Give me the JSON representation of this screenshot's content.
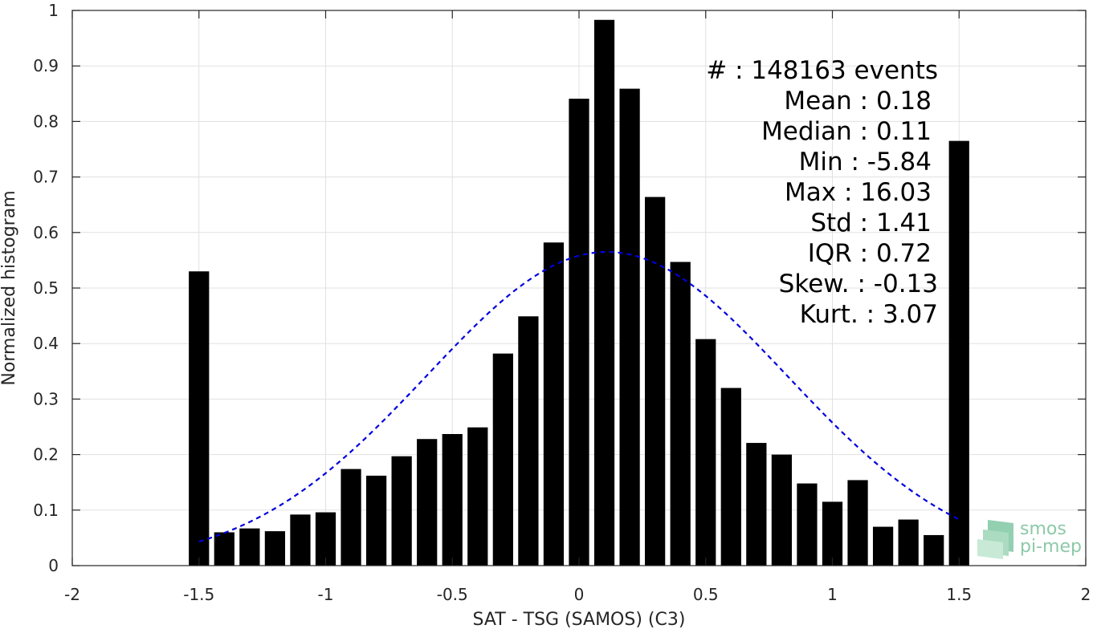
{
  "chart_data": {
    "type": "bar",
    "xlabel": "SAT - TSG (SAMOS) (C3)",
    "ylabel": "Normalized histogram",
    "xlim": [
      -2,
      2
    ],
    "ylim": [
      0,
      1
    ],
    "xticks": [
      -2,
      -1.5,
      -1,
      -0.5,
      0,
      0.5,
      1,
      1.5,
      2
    ],
    "xtick_labels": [
      "-2",
      "-1.5",
      "-1",
      "-0.5",
      "0",
      "0.5",
      "1",
      "1.5",
      "2"
    ],
    "yticks": [
      0,
      0.1,
      0.2,
      0.3,
      0.4,
      0.5,
      0.6,
      0.7,
      0.8,
      0.9,
      1
    ],
    "ytick_labels": [
      "0",
      "0.1",
      "0.2",
      "0.3",
      "0.4",
      "0.5",
      "0.6",
      "0.7",
      "0.8",
      "0.9",
      "1"
    ],
    "grid": true,
    "bar_color": "#000000",
    "bar_width": 0.08,
    "x": [
      -1.5,
      -1.4,
      -1.3,
      -1.2,
      -1.1,
      -1.0,
      -0.9,
      -0.8,
      -0.7,
      -0.6,
      -0.5,
      -0.4,
      -0.3,
      -0.2,
      -0.1,
      0.0,
      0.1,
      0.2,
      0.3,
      0.4,
      0.5,
      0.6,
      0.7,
      0.8,
      0.9,
      1.0,
      1.1,
      1.2,
      1.3,
      1.4,
      1.5
    ],
    "values": [
      0.53,
      0.06,
      0.067,
      0.062,
      0.092,
      0.096,
      0.174,
      0.162,
      0.197,
      0.228,
      0.237,
      0.249,
      0.382,
      0.449,
      0.582,
      0.841,
      0.983,
      0.859,
      0.664,
      0.547,
      0.408,
      0.32,
      0.221,
      0.2,
      0.148,
      0.115,
      0.154,
      0.07,
      0.083,
      0.055,
      0.765
    ],
    "fit_curve": {
      "type": "gaussian",
      "mean": 0.11,
      "sigma": 0.71,
      "peak": 0.565,
      "x_range": [
        -1.5,
        1.5
      ],
      "color": "#0000dd",
      "style": "dashed"
    },
    "annotation": {
      "lines": [
        "#  : 148163 events",
        "Mean : 0.18",
        "Median : 0.11",
        "Min : -5.84",
        "Max : 16.03",
        "Std : 1.41",
        "IQR : 0.72",
        "Skew. : -0.13",
        "Kurt. : 3.07"
      ],
      "placement": "top-right"
    }
  },
  "logo": {
    "line1": "smos",
    "line2": "pi-mep"
  },
  "colors": {
    "axis": "#262626",
    "grid": "#e1e1e1",
    "logo": "#8cc9a8"
  }
}
